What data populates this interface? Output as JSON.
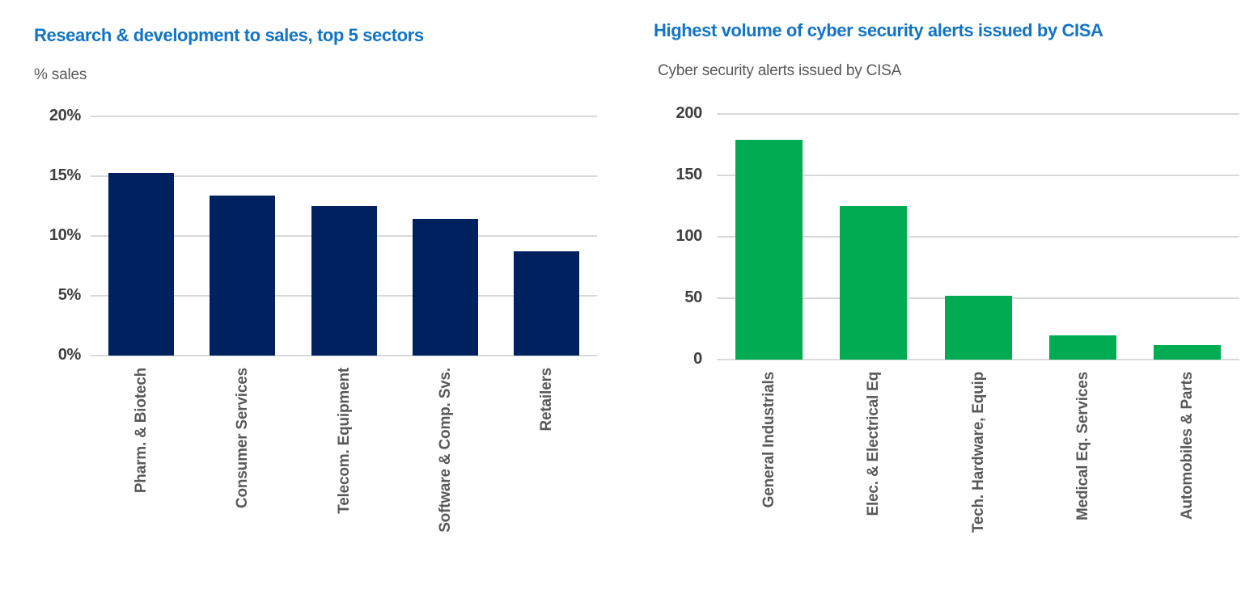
{
  "figure": {
    "background": "#ffffff",
    "title_color": "#1274c5",
    "grid_color": "#d9d9d9",
    "tick_color": "#404040",
    "category_label_color": "#595959"
  },
  "chart_data": [
    {
      "type": "bar",
      "title": "Research & development to sales, top 5 sectors",
      "subtitle": "% sales",
      "ylabel": "% sales",
      "xlabel": "",
      "categories": [
        "Pharm. & Biotech",
        "Consumer Services",
        "Telecom. Equipment",
        "Software & Comp. Svs.",
        "Retailers"
      ],
      "values": [
        15.3,
        13.4,
        12.5,
        11.4,
        8.7
      ],
      "ylim": [
        0,
        20
      ],
      "ytick_step": 5,
      "ytick_labels": [
        "0%",
        "5%",
        "10%",
        "15%",
        "20%"
      ],
      "grid": true,
      "legend_position": "none",
      "bar_color": "#00215f",
      "title_color": "#1274c5"
    },
    {
      "type": "bar",
      "title": "Highest volume of cyber security alerts issued by CISA",
      "subtitle": "Cyber security alerts issued by CISA",
      "ylabel": "Cyber security alerts issued by CISA",
      "xlabel": "",
      "categories": [
        "General Industrials",
        "Elec. & Electrical Eq",
        "Tech. Hardware, Equip",
        "Medical Eq. Services",
        "Automobiles & Parts"
      ],
      "values": [
        179,
        125,
        52,
        20,
        12
      ],
      "ylim": [
        0,
        200
      ],
      "ytick_step": 50,
      "ytick_labels": [
        "0",
        "50",
        "100",
        "150",
        "200"
      ],
      "grid": true,
      "legend_position": "none",
      "bar_color": "#00ab52",
      "title_color": "#1274c5"
    }
  ]
}
